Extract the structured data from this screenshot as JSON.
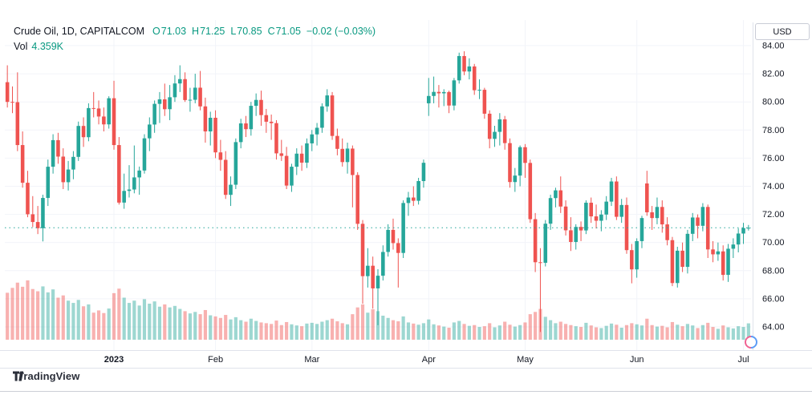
{
  "colors": {
    "up": "#26a69a",
    "down": "#ef5350",
    "up_volume": "rgba(38,166,154,0.45)",
    "down_volume": "rgba(239,83,80,0.45)",
    "legend_up_text": "#089981",
    "text_dark": "#131722",
    "grid": "#f2f4f9",
    "axis_border": "#e0e3eb",
    "current_price_line": "#26a69a"
  },
  "header": {
    "symbol_title": "Crude Oil, 1D, CAPITALCOM",
    "ohlc": {
      "open_label": "O",
      "open": "71.03",
      "high_label": "H",
      "high": "71.25",
      "low_label": "L",
      "low": "70.85",
      "close_label": "C",
      "close": "71.05",
      "change": "−0.02 (−0.03%)"
    },
    "volume": {
      "label": "Vol",
      "value": "4.359K"
    }
  },
  "price_axis": {
    "unit_label": "USD",
    "ticks": [
      84,
      82,
      80,
      78,
      76,
      74,
      72,
      70,
      68,
      66,
      64
    ]
  },
  "time_axis": {
    "labels": [
      {
        "text": "2023",
        "index": 21,
        "bold": true
      },
      {
        "text": "Feb",
        "index": 41
      },
      {
        "text": "Mar",
        "index": 60
      },
      {
        "text": "Apr",
        "index": 83
      },
      {
        "text": "May",
        "index": 102
      },
      {
        "text": "Jun",
        "index": 124
      },
      {
        "text": "Jul",
        "index": 145
      }
    ]
  },
  "footer": {
    "brand": "TradingView"
  },
  "chart_data": {
    "type": "candlestick",
    "symbol": "Crude Oil",
    "interval": "1D",
    "exchange": "CAPITALCOM",
    "currency": "USD",
    "current_price": 71.05,
    "price_range": [
      62.35,
      85.82
    ],
    "volume_axis_max_k": 16,
    "legend": [
      "price (USD)",
      "volume (K)"
    ],
    "columns": [
      "date",
      "open",
      "high",
      "low",
      "close",
      "volume_k"
    ],
    "candles": [
      [
        "2022-12-01",
        81.4,
        82.6,
        79.6,
        80.0,
        12.5
      ],
      [
        "2022-12-02",
        80.0,
        81.1,
        79.2,
        79.98,
        13.8
      ],
      [
        "2022-12-05",
        79.98,
        82.1,
        76.5,
        76.93,
        15.2
      ],
      [
        "2022-12-06",
        76.93,
        77.9,
        73.9,
        74.25,
        14.1
      ],
      [
        "2022-12-07",
        74.25,
        75.1,
        71.8,
        72.01,
        15.8
      ],
      [
        "2022-12-08",
        72.01,
        73.3,
        71.1,
        71.46,
        13.5
      ],
      [
        "2022-12-09",
        71.46,
        72.6,
        70.6,
        71.02,
        12.9
      ],
      [
        "2022-12-12",
        71.02,
        73.4,
        70.08,
        73.17,
        14.2
      ],
      [
        "2022-12-13",
        73.17,
        75.9,
        72.6,
        75.39,
        12.6
      ],
      [
        "2022-12-14",
        75.39,
        77.7,
        74.9,
        77.28,
        13.4
      ],
      [
        "2022-12-15",
        77.28,
        77.8,
        75.6,
        76.11,
        11.2
      ],
      [
        "2022-12-16",
        76.11,
        76.7,
        73.8,
        74.29,
        11.8
      ],
      [
        "2022-12-19",
        74.29,
        75.8,
        73.7,
        75.19,
        10.4
      ],
      [
        "2022-12-20",
        75.19,
        76.5,
        74.5,
        76.09,
        9.8
      ],
      [
        "2022-12-21",
        76.09,
        78.6,
        75.8,
        78.29,
        10.6
      ],
      [
        "2022-12-22",
        78.29,
        78.9,
        76.8,
        77.49,
        8.9
      ],
      [
        "2022-12-23",
        77.49,
        79.9,
        77.2,
        79.56,
        9.4
      ],
      [
        "2022-12-27",
        79.56,
        80.7,
        78.9,
        79.53,
        7.2
      ],
      [
        "2022-12-28",
        79.53,
        80.1,
        78.4,
        78.96,
        7.8
      ],
      [
        "2022-12-29",
        78.96,
        79.6,
        77.9,
        78.4,
        7.1
      ],
      [
        "2022-12-30",
        78.4,
        80.4,
        78.1,
        80.26,
        8.3
      ],
      [
        "2023-01-03",
        80.26,
        81.5,
        76.6,
        76.93,
        12.4
      ],
      [
        "2023-01-04",
        76.93,
        77.5,
        72.7,
        72.84,
        13.6
      ],
      [
        "2023-01-05",
        72.84,
        74.9,
        72.4,
        73.67,
        11.2
      ],
      [
        "2023-01-06",
        73.67,
        75.5,
        73.2,
        73.77,
        9.8
      ],
      [
        "2023-01-09",
        73.77,
        76.9,
        73.5,
        74.63,
        10.4
      ],
      [
        "2023-01-10",
        74.63,
        75.4,
        73.4,
        75.12,
        9.1
      ],
      [
        "2023-01-11",
        75.12,
        77.7,
        74.9,
        77.41,
        10.8
      ],
      [
        "2023-01-12",
        77.41,
        78.9,
        76.5,
        78.39,
        9.6
      ],
      [
        "2023-01-13",
        78.39,
        80.1,
        77.8,
        79.86,
        10.2
      ],
      [
        "2023-01-17",
        79.86,
        80.7,
        78.5,
        80.18,
        8.8
      ],
      [
        "2023-01-18",
        80.18,
        81.3,
        79.0,
        79.48,
        9.4
      ],
      [
        "2023-01-19",
        79.48,
        81.2,
        78.7,
        80.33,
        8.6
      ],
      [
        "2023-01-20",
        80.33,
        81.9,
        80.0,
        81.31,
        9.0
      ],
      [
        "2023-01-23",
        81.31,
        82.6,
        80.7,
        81.62,
        8.2
      ],
      [
        "2023-01-24",
        81.62,
        82.1,
        80.0,
        80.13,
        7.6
      ],
      [
        "2023-01-25",
        80.13,
        81.0,
        79.3,
        80.15,
        7.0
      ],
      [
        "2023-01-26",
        80.15,
        82.0,
        79.9,
        81.01,
        7.4
      ],
      [
        "2023-01-27",
        81.01,
        82.2,
        79.4,
        79.68,
        6.8
      ],
      [
        "2023-01-30",
        79.68,
        80.3,
        77.1,
        77.9,
        7.9
      ],
      [
        "2023-01-31",
        77.9,
        79.3,
        76.9,
        78.87,
        6.5
      ],
      [
        "2023-02-01",
        78.87,
        79.4,
        76.0,
        76.41,
        6.2
      ],
      [
        "2023-02-02",
        76.41,
        77.3,
        75.1,
        75.88,
        5.8
      ],
      [
        "2023-02-03",
        75.88,
        76.5,
        73.1,
        73.39,
        6.6
      ],
      [
        "2023-02-06",
        73.39,
        74.7,
        72.6,
        74.11,
        5.4
      ],
      [
        "2023-02-07",
        74.11,
        77.4,
        73.8,
        77.14,
        6.0
      ],
      [
        "2023-02-08",
        77.14,
        78.8,
        76.7,
        78.47,
        5.2
      ],
      [
        "2023-02-09",
        78.47,
        79.0,
        77.5,
        78.06,
        4.8
      ],
      [
        "2023-02-10",
        78.06,
        80.0,
        77.6,
        79.72,
        5.6
      ],
      [
        "2023-02-13",
        79.72,
        80.6,
        79.0,
        80.14,
        5.0
      ],
      [
        "2023-02-14",
        80.14,
        80.8,
        78.3,
        79.06,
        4.6
      ],
      [
        "2023-02-15",
        79.06,
        79.5,
        77.8,
        78.59,
        4.4
      ],
      [
        "2023-02-16",
        78.59,
        79.1,
        77.3,
        78.49,
        4.2
      ],
      [
        "2023-02-17",
        78.49,
        78.7,
        75.9,
        76.34,
        5.1
      ],
      [
        "2023-02-21",
        76.34,
        77.3,
        75.8,
        76.16,
        3.9
      ],
      [
        "2023-02-22",
        76.16,
        76.8,
        73.8,
        74.05,
        4.7
      ],
      [
        "2023-02-23",
        74.05,
        75.6,
        73.6,
        75.39,
        4.1
      ],
      [
        "2023-02-24",
        75.39,
        76.7,
        74.8,
        76.32,
        3.8
      ],
      [
        "2023-02-27",
        76.32,
        76.9,
        75.1,
        75.68,
        3.6
      ],
      [
        "2023-02-28",
        75.68,
        77.4,
        75.3,
        77.05,
        4.3
      ],
      [
        "2023-03-01",
        77.05,
        78.0,
        76.5,
        77.69,
        4.5
      ],
      [
        "2023-03-02",
        77.69,
        78.5,
        76.9,
        78.16,
        4.2
      ],
      [
        "2023-03-03",
        78.16,
        79.9,
        77.8,
        79.68,
        4.8
      ],
      [
        "2023-03-06",
        79.68,
        80.9,
        79.3,
        80.46,
        5.2
      ],
      [
        "2023-03-07",
        80.46,
        80.7,
        77.3,
        77.58,
        5.6
      ],
      [
        "2023-03-08",
        77.58,
        78.1,
        76.2,
        76.66,
        4.9
      ],
      [
        "2023-03-09",
        76.66,
        77.4,
        75.4,
        75.72,
        4.4
      ],
      [
        "2023-03-10",
        75.72,
        77.1,
        74.9,
        76.68,
        4.1
      ],
      [
        "2023-03-13",
        76.68,
        76.9,
        72.5,
        74.8,
        6.8
      ],
      [
        "2023-03-14",
        74.8,
        75.0,
        70.9,
        71.33,
        8.6
      ],
      [
        "2023-03-15",
        71.33,
        71.6,
        65.65,
        67.61,
        9.4
      ],
      [
        "2023-03-16",
        67.61,
        69.6,
        66.8,
        68.35,
        7.2
      ],
      [
        "2023-03-17",
        68.35,
        69.0,
        65.3,
        66.74,
        8.1
      ],
      [
        "2023-03-20",
        66.74,
        68.1,
        64.12,
        67.64,
        7.6
      ],
      [
        "2023-03-21",
        67.64,
        69.8,
        67.3,
        69.33,
        6.4
      ],
      [
        "2023-03-22",
        69.33,
        71.3,
        69.0,
        70.9,
        5.8
      ],
      [
        "2023-03-23",
        70.9,
        71.7,
        69.5,
        69.96,
        5.2
      ],
      [
        "2023-03-24",
        69.96,
        70.3,
        66.8,
        69.26,
        4.9
      ],
      [
        "2023-03-27",
        69.26,
        73.0,
        68.9,
        72.81,
        6.2
      ],
      [
        "2023-03-28",
        72.81,
        73.6,
        71.9,
        73.2,
        4.6
      ],
      [
        "2023-03-29",
        73.2,
        74.0,
        72.6,
        72.97,
        4.3
      ],
      [
        "2023-03-30",
        72.97,
        74.6,
        72.7,
        74.37,
        4.0
      ],
      [
        "2023-03-31",
        74.37,
        75.9,
        73.9,
        75.67,
        4.4
      ],
      [
        "2023-04-03",
        79.9,
        81.7,
        79.0,
        80.42,
        5.4
      ],
      [
        "2023-04-04",
        80.42,
        81.8,
        79.9,
        80.71,
        4.1
      ],
      [
        "2023-04-05",
        80.71,
        81.2,
        79.6,
        80.61,
        3.8
      ],
      [
        "2023-04-06",
        80.61,
        80.9,
        79.7,
        80.7,
        3.5
      ],
      [
        "2023-04-10",
        80.7,
        80.8,
        79.2,
        79.74,
        3.2
      ],
      [
        "2023-04-11",
        79.74,
        81.7,
        79.4,
        81.53,
        4.6
      ],
      [
        "2023-04-12",
        81.53,
        83.5,
        81.3,
        83.26,
        5.0
      ],
      [
        "2023-04-13",
        83.26,
        83.6,
        81.9,
        82.16,
        4.2
      ],
      [
        "2023-04-14",
        82.16,
        83.1,
        81.6,
        82.52,
        3.7
      ],
      [
        "2023-04-17",
        82.52,
        82.7,
        80.5,
        80.83,
        3.9
      ],
      [
        "2023-04-18",
        80.83,
        81.6,
        80.2,
        80.86,
        3.4
      ],
      [
        "2023-04-19",
        80.86,
        81.0,
        78.8,
        79.16,
        3.6
      ],
      [
        "2023-04-20",
        79.16,
        79.4,
        76.7,
        77.37,
        4.4
      ],
      [
        "2023-04-21",
        77.37,
        78.3,
        76.8,
        77.87,
        3.3
      ],
      [
        "2023-04-24",
        77.87,
        79.2,
        76.9,
        78.76,
        3.8
      ],
      [
        "2023-04-25",
        78.76,
        79.0,
        76.6,
        77.07,
        4.8
      ],
      [
        "2023-04-26",
        77.07,
        77.4,
        73.9,
        74.3,
        4.0
      ],
      [
        "2023-04-27",
        74.3,
        75.3,
        73.6,
        74.76,
        3.5
      ],
      [
        "2023-04-28",
        74.76,
        76.9,
        74.0,
        76.78,
        3.9
      ],
      [
        "2023-05-01",
        76.78,
        77.0,
        74.6,
        75.66,
        4.6
      ],
      [
        "2023-05-02",
        75.66,
        75.9,
        71.4,
        71.66,
        6.8
      ],
      [
        "2023-05-03",
        71.66,
        72.1,
        67.9,
        68.6,
        7.4
      ],
      [
        "2023-05-04",
        68.6,
        69.6,
        63.64,
        68.56,
        8.2
      ],
      [
        "2023-05-05",
        68.56,
        71.6,
        68.3,
        71.34,
        6.1
      ],
      [
        "2023-05-08",
        71.34,
        73.4,
        70.9,
        73.16,
        5.2
      ],
      [
        "2023-05-09",
        73.16,
        73.9,
        72.5,
        73.71,
        4.4
      ],
      [
        "2023-05-10",
        73.71,
        74.7,
        72.1,
        72.56,
        4.8
      ],
      [
        "2023-05-11",
        72.56,
        73.0,
        70.5,
        70.87,
        4.2
      ],
      [
        "2023-05-12",
        70.87,
        71.8,
        69.4,
        70.04,
        3.9
      ],
      [
        "2023-05-15",
        70.04,
        71.3,
        69.5,
        71.11,
        3.6
      ],
      [
        "2023-05-16",
        71.11,
        71.5,
        70.1,
        70.86,
        3.4
      ],
      [
        "2023-05-17",
        70.86,
        73.0,
        70.6,
        72.83,
        4.5
      ],
      [
        "2023-05-18",
        72.83,
        73.2,
        71.4,
        71.86,
        3.8
      ],
      [
        "2023-05-19",
        71.86,
        72.7,
        71.0,
        71.55,
        3.3
      ],
      [
        "2023-05-22",
        71.55,
        72.3,
        70.8,
        71.99,
        3.1
      ],
      [
        "2023-05-23",
        71.99,
        73.3,
        71.6,
        72.91,
        3.7
      ],
      [
        "2023-05-24",
        72.91,
        74.6,
        72.6,
        74.34,
        4.3
      ],
      [
        "2023-05-25",
        74.34,
        74.7,
        71.6,
        71.83,
        4.0
      ],
      [
        "2023-05-26",
        71.83,
        73.1,
        71.4,
        72.67,
        3.2
      ],
      [
        "2023-05-30",
        72.67,
        73.2,
        69.2,
        69.46,
        3.9
      ],
      [
        "2023-05-31",
        69.46,
        69.9,
        67.1,
        68.09,
        4.4
      ],
      [
        "2023-06-01",
        68.09,
        70.3,
        67.5,
        70.1,
        4.1
      ],
      [
        "2023-06-02",
        70.1,
        71.9,
        69.6,
        71.74,
        3.8
      ],
      [
        "2023-06-05",
        74.2,
        75.1,
        71.9,
        72.15,
        5.6
      ],
      [
        "2023-06-06",
        72.15,
        72.6,
        70.9,
        71.74,
        3.9
      ],
      [
        "2023-06-07",
        71.74,
        73.2,
        71.3,
        72.53,
        3.5
      ],
      [
        "2023-06-08",
        72.53,
        73.0,
        70.7,
        71.29,
        3.7
      ],
      [
        "2023-06-09",
        71.29,
        71.8,
        69.8,
        70.17,
        3.3
      ],
      [
        "2023-06-12",
        70.17,
        70.4,
        66.9,
        67.12,
        4.7
      ],
      [
        "2023-06-13",
        67.12,
        69.7,
        66.8,
        69.42,
        4.0
      ],
      [
        "2023-06-14",
        69.42,
        70.0,
        67.9,
        68.27,
        3.6
      ],
      [
        "2023-06-15",
        68.27,
        70.9,
        67.8,
        70.62,
        4.2
      ],
      [
        "2023-06-16",
        70.62,
        72.1,
        70.1,
        71.78,
        3.8
      ],
      [
        "2023-06-20",
        71.78,
        72.0,
        70.3,
        71.19,
        3.1
      ],
      [
        "2023-06-21",
        71.19,
        72.8,
        70.8,
        72.53,
        3.9
      ],
      [
        "2023-06-22",
        72.53,
        72.7,
        68.9,
        69.51,
        4.5
      ],
      [
        "2023-06-23",
        69.51,
        70.1,
        68.6,
        69.16,
        3.4
      ],
      [
        "2023-06-26",
        69.16,
        70.0,
        68.7,
        69.37,
        2.9
      ],
      [
        "2023-06-27",
        69.37,
        69.8,
        67.3,
        67.7,
        3.8
      ],
      [
        "2023-06-28",
        67.7,
        69.9,
        67.2,
        69.56,
        3.3
      ],
      [
        "2023-06-29",
        69.56,
        70.3,
        68.9,
        69.86,
        3.0
      ],
      [
        "2023-06-30",
        69.86,
        71.0,
        69.3,
        70.64,
        3.6
      ],
      [
        "2023-07-03",
        70.64,
        71.4,
        69.9,
        71.03,
        3.4
      ],
      [
        "2023-07-04",
        71.03,
        71.25,
        70.85,
        71.05,
        4.359
      ]
    ]
  }
}
